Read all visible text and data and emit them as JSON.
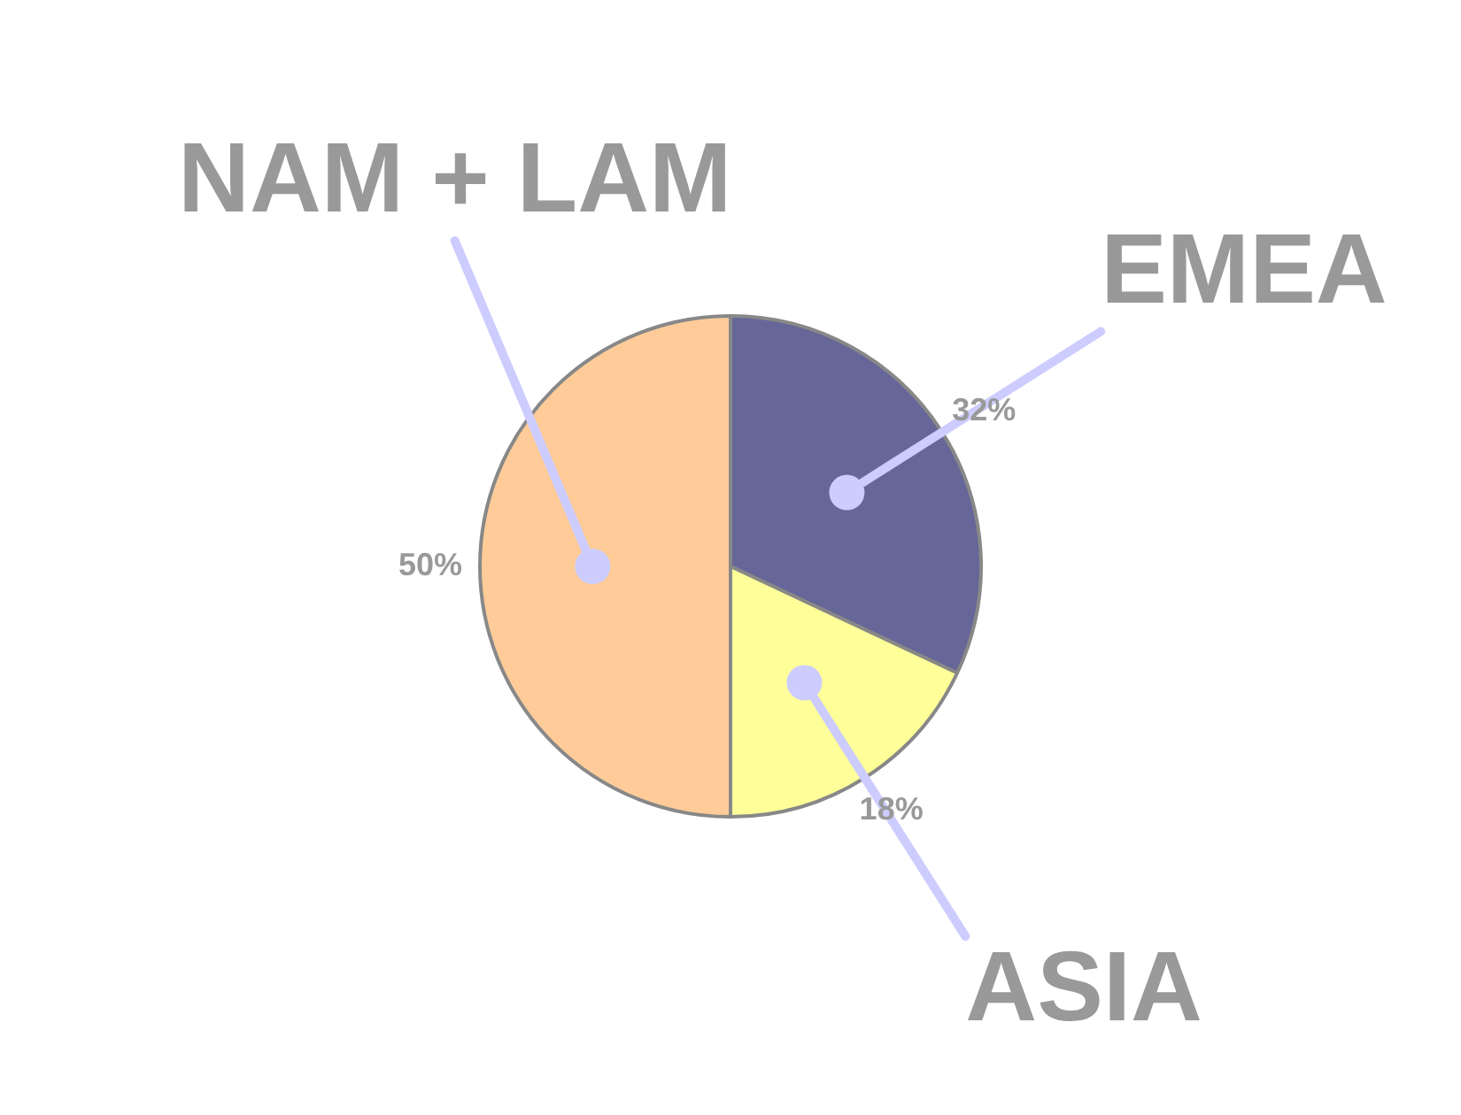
{
  "chart_data": {
    "type": "pie",
    "categories": [
      "EMEA",
      "ASIA",
      "NAM + LAM"
    ],
    "values": [
      32,
      18,
      50
    ],
    "colors": [
      "#666699",
      "#ffff99",
      "#ffcc99"
    ],
    "value_labels": [
      "32%",
      "18%",
      "50%"
    ],
    "legend": false
  }
}
